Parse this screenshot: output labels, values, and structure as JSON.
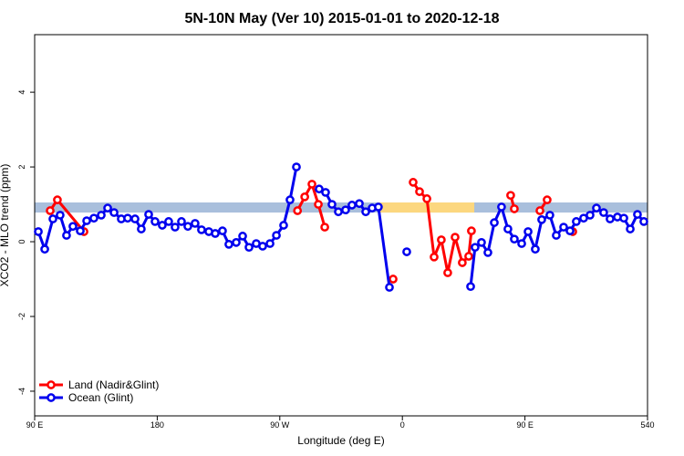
{
  "chart_data": {
    "type": "line",
    "title": "5N-10N May (Ver 10)   2015-01-01 to 2020-12-18",
    "x_label": "Longitude (deg E)",
    "y_label": "XCO2 - MLO trend (ppm)",
    "xlim": [
      90,
      540
    ],
    "xticks": [
      {
        "value": 90,
        "label": "90 E"
      },
      180,
      {
        "value": 270,
        "label": "90 W"
      },
      {
        "value": 360,
        "label": "0"
      },
      {
        "value": 450,
        "label": "90 E"
      },
      540
    ],
    "ylim": [
      -4.66,
      5.54
    ],
    "yticks": [
      -4,
      -2,
      0,
      2,
      4
    ],
    "legend": "bottom-left",
    "band": {
      "ylim": [
        0.78,
        1.05
      ],
      "color": "#a9bfdc",
      "highlight_color": "#fcd77f",
      "highlight_x": [
        342.5,
        412.8
      ]
    },
    "series": [
      {
        "name": "Land (Nadir&Glint)",
        "color": "#ff0000",
        "x": [
          101.4,
          106.7,
          126.2,
          null,
          283.0,
          288.3,
          293.6,
          298.3,
          303.0,
          null,
          353.2,
          null,
          367.9,
          372.6,
          378.0,
          383.3,
          388.6,
          393.3,
          398.7,
          404.0,
          408.7,
          410.7,
          null,
          439.5,
          442.2,
          null,
          461.0,
          466.3,
          null,
          485.1
        ],
        "values": [
          0.83,
          1.12,
          0.27,
          null,
          0.83,
          1.2,
          1.54,
          1.0,
          0.39,
          null,
          -1.0,
          null,
          1.59,
          1.34,
          1.15,
          -0.41,
          0.05,
          -0.83,
          0.12,
          -0.56,
          -0.39,
          0.29,
          null,
          1.24,
          0.88,
          null,
          0.83,
          1.12,
          null,
          0.27
        ]
      },
      {
        "name": "Ocean (Glint)",
        "color": "#0000ee",
        "x": [
          92.7,
          97.4,
          103.4,
          108.7,
          113.4,
          118.1,
          123.5,
          128.2,
          133.5,
          138.9,
          143.6,
          148.3,
          153.6,
          158.3,
          163.7,
          168.3,
          173.7,
          178.4,
          183.7,
          188.4,
          193.1,
          197.8,
          202.5,
          207.8,
          212.5,
          217.9,
          222.6,
          227.9,
          232.6,
          238.0,
          242.7,
          247.4,
          252.7,
          257.4,
          262.8,
          267.5,
          272.8,
          277.5,
          282.2,
          null,
          298.9,
          303.6,
          308.3,
          313.0,
          318.3,
          323.0,
          328.4,
          333.1,
          337.8,
          342.4,
          350.5,
          null,
          363.2,
          null,
          410.1,
          413.4,
          418.1,
          422.8,
          427.5,
          432.8,
          437.5,
          442.2,
          447.6,
          452.3,
          457.6,
          462.3,
          468.3,
          473.0,
          478.4,
          483.1,
          487.7,
          493.1,
          497.8,
          502.5,
          507.8,
          512.5,
          517.9,
          522.6,
          527.3,
          532.6,
          537.3
        ],
        "values": [
          0.27,
          -0.2,
          0.61,
          0.71,
          0.17,
          0.41,
          0.29,
          0.56,
          0.63,
          0.71,
          0.9,
          0.78,
          0.61,
          0.63,
          0.61,
          0.34,
          0.73,
          0.54,
          0.44,
          0.54,
          0.39,
          0.54,
          0.41,
          0.49,
          0.32,
          0.27,
          0.22,
          0.29,
          -0.07,
          -0.02,
          0.15,
          -0.15,
          -0.05,
          -0.12,
          -0.05,
          0.17,
          0.44,
          1.12,
          2.0,
          null,
          1.41,
          1.32,
          1.0,
          0.8,
          0.85,
          0.98,
          1.02,
          0.8,
          0.9,
          0.93,
          -1.22,
          null,
          -0.27,
          null,
          -1.2,
          -0.15,
          -0.02,
          -0.29,
          0.51,
          0.93,
          0.34,
          0.07,
          -0.05,
          0.27,
          -0.2,
          0.59,
          0.71,
          0.17,
          0.39,
          0.29,
          0.54,
          0.63,
          0.71,
          0.9,
          0.78,
          0.61,
          0.66,
          0.63,
          0.34,
          0.73,
          0.54
        ]
      }
    ]
  }
}
